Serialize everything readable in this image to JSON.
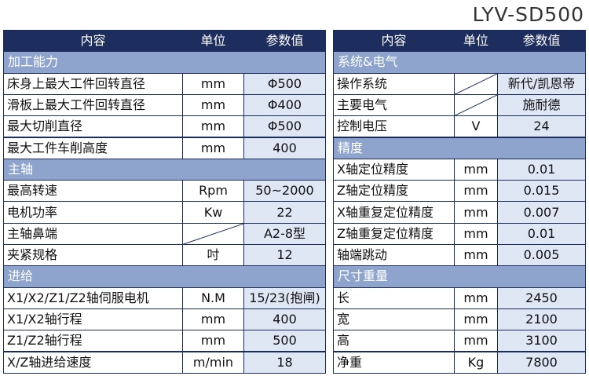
{
  "title": "LYV-SD500",
  "left": {
    "header": [
      "内容",
      "单位",
      "参数值"
    ],
    "sections": [
      {
        "title": "加工能力",
        "rows": [
          [
            "床身上最大工件回转直径",
            "mm",
            "Φ500"
          ],
          [
            "滑板上最大工件回转直径",
            "mm",
            "Φ400"
          ],
          [
            "最大切削直径",
            "mm",
            "Φ500"
          ],
          [
            "最大工件车削高度",
            "mm",
            "400"
          ]
        ]
      },
      {
        "title": "主轴",
        "rows": [
          [
            "最高转速",
            "Rpm",
            "50~2000"
          ],
          [
            "电机功率",
            "Kw",
            "22"
          ],
          [
            "主轴鼻端",
            null,
            "A2-8型"
          ],
          [
            "夹紧规格",
            "吋",
            "12"
          ]
        ]
      },
      {
        "title": "进给",
        "rows": [
          [
            "X1/X2/Z1/Z2轴伺服电机",
            "N.M",
            "15/23(抱闸)"
          ],
          [
            "X1/X2轴行程",
            "mm",
            "400"
          ],
          [
            "Z1/Z2轴行程",
            "mm",
            "500"
          ],
          [
            "X/Z轴进给速度",
            "m/min",
            "18"
          ]
        ]
      }
    ]
  },
  "right": {
    "header": [
      "内容",
      "单位",
      "参数值"
    ],
    "sections": [
      {
        "title": "系统&电气",
        "rows": [
          [
            "操作系统",
            null,
            "新代/凯恩帝"
          ],
          [
            "主要电气",
            null,
            "施耐德"
          ],
          [
            "控制电压",
            "V",
            "24"
          ]
        ]
      },
      {
        "title": "精度",
        "rows": [
          [
            "X轴定位精度",
            "mm",
            "0.01"
          ],
          [
            "Z轴定位精度",
            "mm",
            "0.015"
          ],
          [
            "X轴重复定位精度",
            "mm",
            "0.007"
          ],
          [
            "Z轴重复定位精度",
            "mm",
            "0.01"
          ],
          [
            "轴端跳动",
            "mm",
            "0.005"
          ]
        ]
      },
      {
        "title": "尺寸重量",
        "rows": [
          [
            "长",
            "mm",
            "2450"
          ],
          [
            "宽",
            "mm",
            "2100"
          ],
          [
            "高",
            "mm",
            "3100"
          ],
          [
            "净重",
            "Kg",
            "7800"
          ]
        ]
      }
    ]
  }
}
